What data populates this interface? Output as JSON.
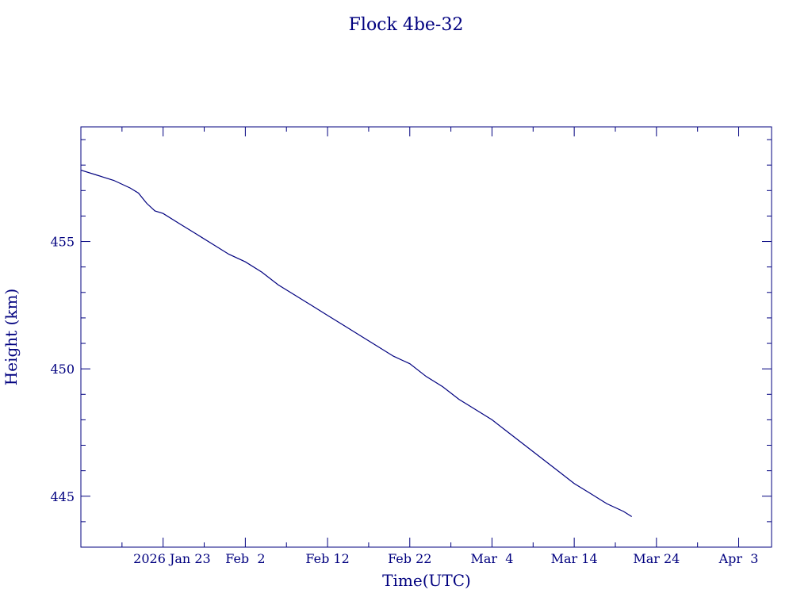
{
  "chart_data": {
    "type": "line",
    "title": "Flock 4be-32",
    "xlabel": "Time(UTC)",
    "ylabel": "Height (km)",
    "xlim": [
      "2026-01-13",
      "2026-04-07"
    ],
    "ylim": [
      443,
      459.5
    ],
    "x_tick_labels": [
      {
        "date": "2026-01-23",
        "label": "2026 Jan 23"
      },
      {
        "date": "2026-02-02",
        "label": "Feb  2"
      },
      {
        "date": "2026-02-12",
        "label": "Feb 12"
      },
      {
        "date": "2026-02-22",
        "label": "Feb 22"
      },
      {
        "date": "2026-03-04",
        "label": "Mar  4"
      },
      {
        "date": "2026-03-14",
        "label": "Mar 14"
      },
      {
        "date": "2026-03-24",
        "label": "Mar 24"
      },
      {
        "date": "2026-04-03",
        "label": "Apr  3"
      }
    ],
    "y_ticks": [
      445,
      450,
      455
    ],
    "grid": false,
    "color": "#00007f",
    "series": [
      {
        "x": [
          "2026-01-13",
          "2026-01-15",
          "2026-01-17",
          "2026-01-19",
          "2026-01-20",
          "2026-01-21",
          "2026-01-22",
          "2026-01-23",
          "2026-01-25",
          "2026-01-27",
          "2026-01-29",
          "2026-01-31",
          "2026-02-02",
          "2026-02-04",
          "2026-02-06",
          "2026-02-08",
          "2026-02-10",
          "2026-02-12",
          "2026-02-14",
          "2026-02-16",
          "2026-02-18",
          "2026-02-20",
          "2026-02-22",
          "2026-02-24",
          "2026-02-26",
          "2026-02-28",
          "2026-03-02",
          "2026-03-04",
          "2026-03-06",
          "2026-03-08",
          "2026-03-10",
          "2026-03-12",
          "2026-03-14",
          "2026-03-16",
          "2026-03-18",
          "2026-03-20",
          "2026-03-21"
        ],
        "y": [
          457.8,
          457.6,
          457.4,
          457.1,
          456.9,
          456.5,
          456.2,
          456.1,
          455.7,
          455.3,
          454.9,
          454.5,
          454.2,
          453.8,
          453.3,
          452.9,
          452.5,
          452.1,
          451.7,
          451.3,
          450.9,
          450.5,
          450.2,
          449.7,
          449.3,
          448.8,
          448.4,
          448.0,
          447.5,
          447.0,
          446.5,
          446.0,
          445.5,
          445.1,
          444.7,
          444.4,
          444.2
        ]
      }
    ]
  }
}
